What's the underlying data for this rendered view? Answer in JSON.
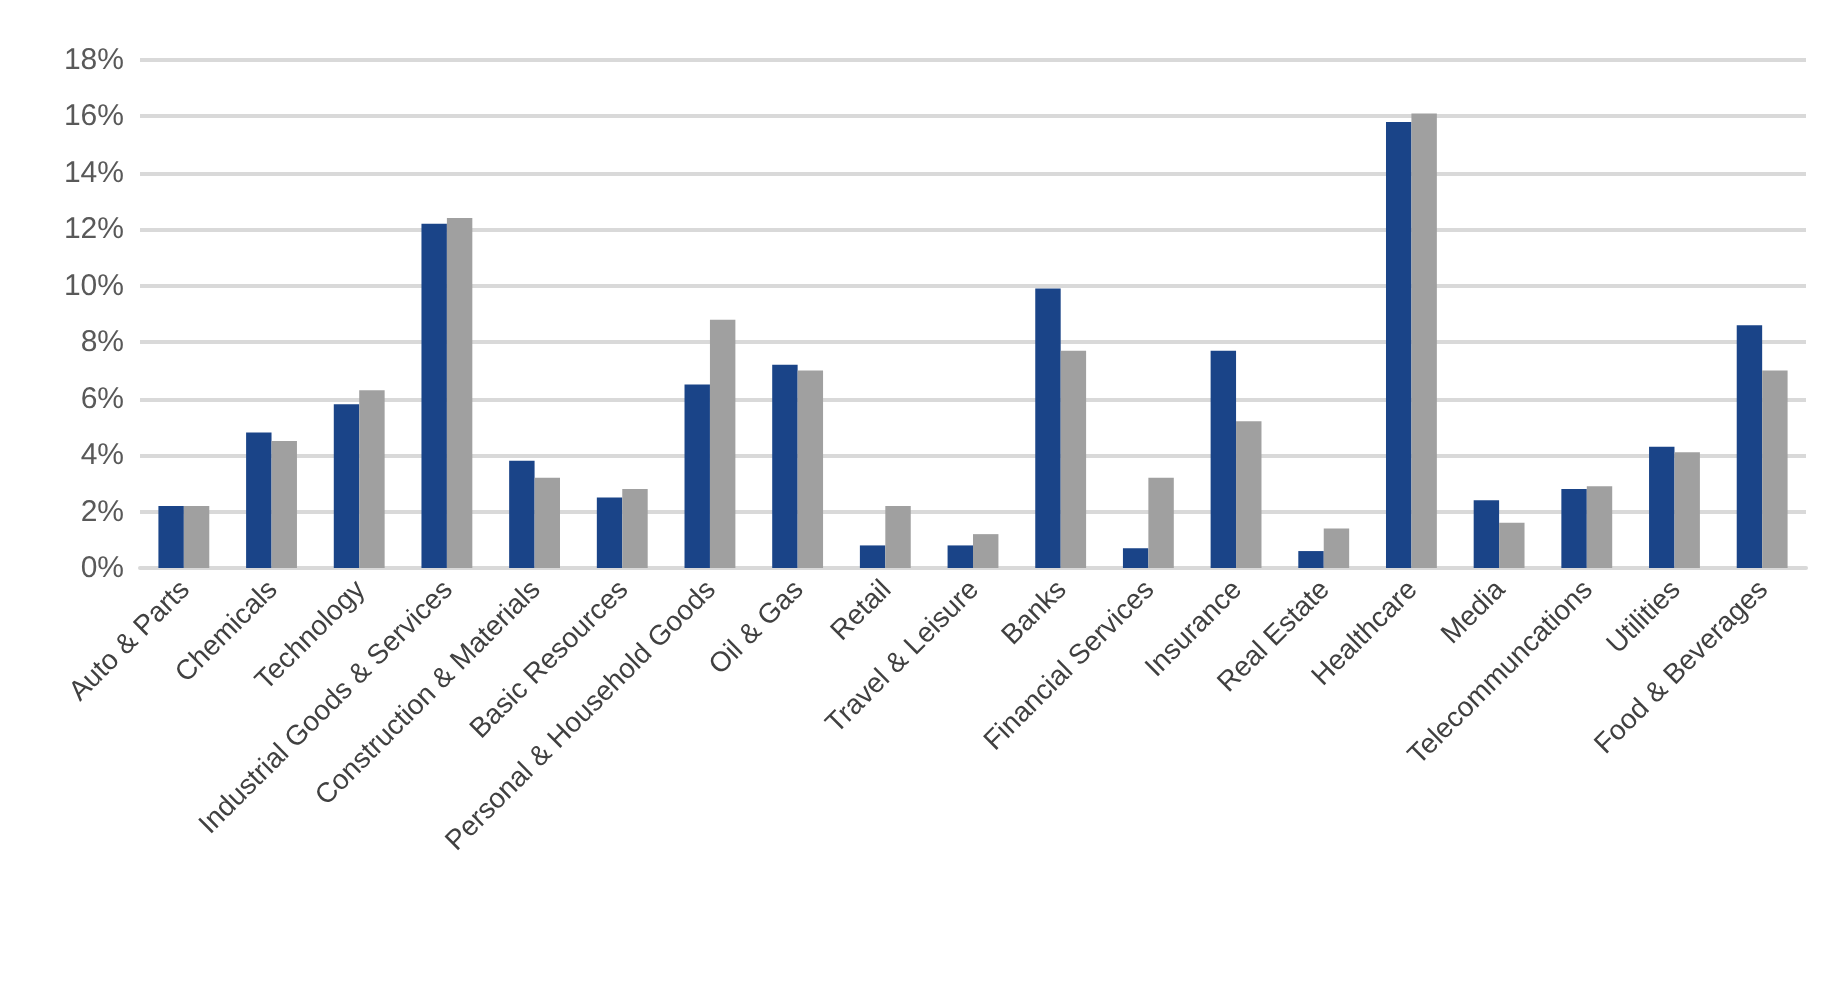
{
  "chart_data": {
    "type": "bar",
    "categories": [
      "Auto & Parts",
      "Chemicals",
      "Technology",
      "Industrial Goods & Services",
      "Construction & Materials",
      "Basic Resources",
      "Personal & Household Goods",
      "Oil & Gas",
      "Retail",
      "Travel & Leisure",
      "Banks",
      "Financial Services",
      "Insurance",
      "Real Estate",
      "Healthcare",
      "Media",
      "Telecommuncations",
      "Utilities",
      "Food & Beverages"
    ],
    "series": [
      {
        "color": "#1a4488",
        "values": [
          2.2,
          4.8,
          5.8,
          12.2,
          3.8,
          2.5,
          6.5,
          7.2,
          0.8,
          0.8,
          9.9,
          0.7,
          7.7,
          0.6,
          15.8,
          2.4,
          2.8,
          4.3,
          8.6
        ]
      },
      {
        "color": "#a0a0a0",
        "values": [
          2.2,
          4.5,
          6.3,
          12.4,
          3.2,
          2.8,
          8.8,
          7.0,
          2.2,
          1.2,
          7.7,
          3.2,
          5.2,
          1.4,
          16.1,
          1.6,
          2.9,
          4.1,
          7.0
        ]
      }
    ],
    "ylim": [
      0,
      18
    ],
    "yticks": [
      {
        "value": 0,
        "label": "0%"
      },
      {
        "value": 2,
        "label": "2%"
      },
      {
        "value": 4,
        "label": "4%"
      },
      {
        "value": 6,
        "label": "6%"
      },
      {
        "value": 8,
        "label": "8%"
      },
      {
        "value": 10,
        "label": "10%"
      },
      {
        "value": 12,
        "label": "12%"
      },
      {
        "value": 14,
        "label": "14%"
      },
      {
        "value": 16,
        "label": "16%"
      },
      {
        "value": 18,
        "label": "18%"
      }
    ],
    "grid": "y"
  }
}
